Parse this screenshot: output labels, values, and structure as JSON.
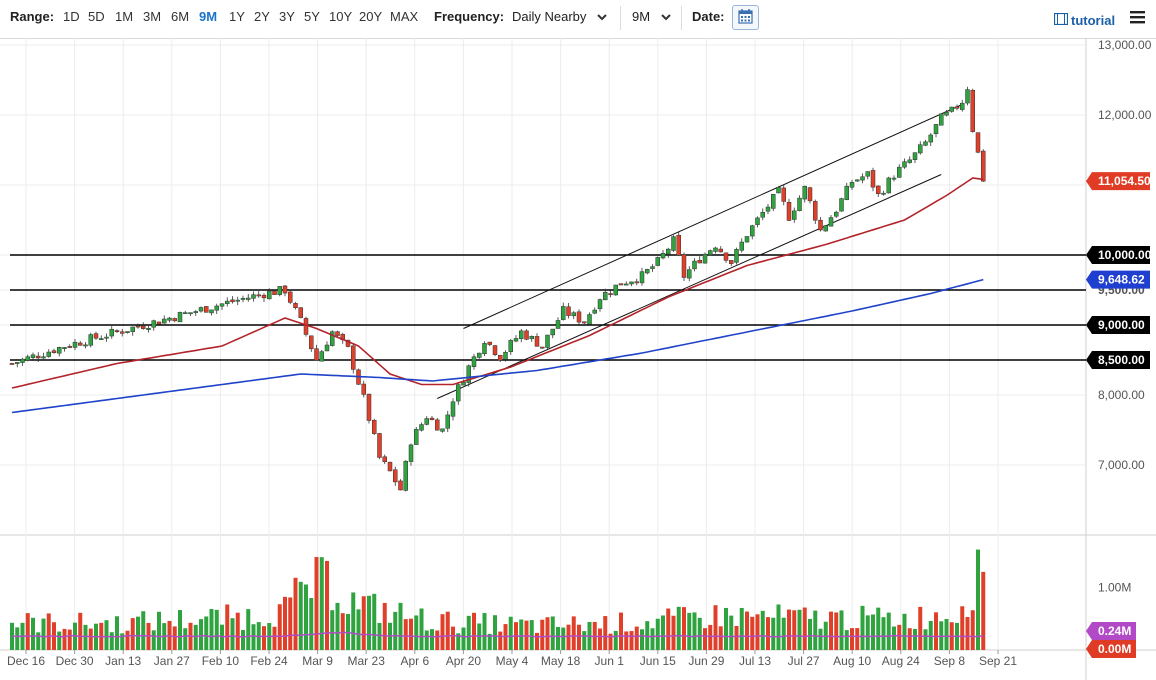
{
  "toolbar": {
    "range_label": "Range:",
    "ranges": [
      "1D",
      "5D",
      "1M",
      "3M",
      "6M",
      "9M",
      "1Y",
      "2Y",
      "3Y",
      "5Y",
      "10Y",
      "20Y",
      "MAX"
    ],
    "active_range": "9M",
    "frequency_label": "Frequency:",
    "frequency_value": "Daily Nearby",
    "period_value": "9M",
    "date_label": "Date:",
    "tutorial_label": "tutorial"
  },
  "colors": {
    "up": "#2ea33f",
    "down": "#e0402a",
    "ma50": "#b3242a",
    "ma200": "#1f43c9",
    "volume_avg": "#b24ac8",
    "price_badge": "#e03b24",
    "level_badge": "#000000",
    "ma200_badge": "#1f3fd0",
    "vol_badge": "#b24ac8",
    "vol_zero_badge": "#e03b24"
  },
  "chart_data": {
    "type": "candlestick",
    "x_ticks": [
      "Dec 16",
      "Dec 30",
      "Jan 13",
      "Jan 27",
      "Feb 10",
      "Feb 24",
      "Mar 9",
      "Mar 23",
      "Apr 6",
      "Apr 20",
      "May 4",
      "May 18",
      "Jun 1",
      "Jun 15",
      "Jun 29",
      "Jul 13",
      "Jul 27",
      "Aug 10",
      "Aug 24",
      "Sep 8",
      "Sep 21"
    ],
    "y_ticks": [
      "7,000.00",
      "8,000.00",
      "12,000.00",
      "13,000.00"
    ],
    "y_tick_values": [
      7000,
      8000,
      12000,
      13000
    ],
    "ylim": [
      6000,
      13000
    ],
    "grid": true,
    "horizontal_levels": [
      {
        "label": "10,000.00",
        "value": 10000
      },
      {
        "label": "9,500.00",
        "value": 9500
      },
      {
        "label": "9,000.00",
        "value": 9000
      },
      {
        "label": "8,500.00",
        "value": 8500
      }
    ],
    "last_price": {
      "label": "11,054.50",
      "value": 11054.5
    },
    "ma200_value": {
      "label": "9,648.62",
      "value": 9648.62
    },
    "close_path": [
      [
        0,
        8450
      ],
      [
        10,
        8700
      ],
      [
        20,
        8900
      ],
      [
        30,
        9100
      ],
      [
        40,
        9300
      ],
      [
        48,
        9450
      ],
      [
        52,
        9500
      ],
      [
        55,
        9050
      ],
      [
        58,
        8500
      ],
      [
        61,
        8900
      ],
      [
        64,
        8650
      ],
      [
        67,
        7950
      ],
      [
        70,
        7100
      ],
      [
        72,
        6900
      ],
      [
        74,
        6650
      ],
      [
        76,
        7350
      ],
      [
        79,
        7700
      ],
      [
        82,
        7500
      ],
      [
        84,
        7950
      ],
      [
        87,
        8400
      ],
      [
        90,
        8800
      ],
      [
        93,
        8550
      ],
      [
        97,
        8900
      ],
      [
        101,
        8700
      ],
      [
        105,
        9200
      ],
      [
        109,
        9050
      ],
      [
        112,
        9400
      ],
      [
        116,
        9600
      ],
      [
        120,
        9700
      ],
      [
        123,
        9900
      ],
      [
        126,
        10200
      ],
      [
        128,
        9700
      ],
      [
        131,
        9950
      ],
      [
        134,
        10150
      ],
      [
        137,
        9900
      ],
      [
        140,
        10300
      ],
      [
        143,
        10600
      ],
      [
        146,
        10900
      ],
      [
        148,
        10550
      ],
      [
        151,
        10950
      ],
      [
        154,
        10350
      ],
      [
        157,
        10650
      ],
      [
        160,
        11050
      ],
      [
        163,
        11150
      ],
      [
        165,
        10850
      ],
      [
        168,
        11150
      ],
      [
        171,
        11350
      ],
      [
        174,
        11600
      ],
      [
        177,
        11950
      ],
      [
        179,
        12050
      ],
      [
        181,
        12200
      ],
      [
        182,
        12400
      ],
      [
        183,
        11800
      ],
      [
        184,
        11450
      ],
      [
        185,
        11050
      ]
    ],
    "ma50_path": [
      [
        0,
        8100
      ],
      [
        20,
        8450
      ],
      [
        40,
        8700
      ],
      [
        52,
        9100
      ],
      [
        58,
        8950
      ],
      [
        66,
        8700
      ],
      [
        72,
        8300
      ],
      [
        78,
        8150
      ],
      [
        84,
        8150
      ],
      [
        95,
        8400
      ],
      [
        110,
        8850
      ],
      [
        125,
        9400
      ],
      [
        140,
        9850
      ],
      [
        155,
        10150
      ],
      [
        170,
        10500
      ],
      [
        178,
        10850
      ],
      [
        183,
        11100
      ],
      [
        185,
        11080
      ]
    ],
    "ma200_path": [
      [
        0,
        7750
      ],
      [
        30,
        8050
      ],
      [
        55,
        8300
      ],
      [
        70,
        8250
      ],
      [
        80,
        8200
      ],
      [
        100,
        8350
      ],
      [
        120,
        8600
      ],
      [
        140,
        8900
      ],
      [
        160,
        9200
      ],
      [
        175,
        9450
      ],
      [
        185,
        9648.62
      ]
    ],
    "channel_lines": [
      {
        "from": [
          86,
          8950
        ],
        "to": [
          181,
          12150
        ]
      },
      {
        "from": [
          81,
          7950
        ],
        "to": [
          177,
          11150
        ]
      }
    ],
    "volume": {
      "y_ticks": [
        "1.00M"
      ],
      "y_tick_values": [
        1000000
      ],
      "ylim": [
        0,
        1600000
      ],
      "last_avg": {
        "label": "0.24M",
        "value": 240000
      },
      "last_volume": {
        "label": "0.00M",
        "value": 0
      },
      "profile": [
        [
          0,
          480000
        ],
        [
          20,
          460000
        ],
        [
          30,
          520000
        ],
        [
          45,
          580000
        ],
        [
          52,
          700000
        ],
        [
          56,
          1100000
        ],
        [
          60,
          1200000
        ],
        [
          64,
          850000
        ],
        [
          70,
          700000
        ],
        [
          80,
          500000
        ],
        [
          100,
          420000
        ],
        [
          120,
          480000
        ],
        [
          135,
          600000
        ],
        [
          150,
          560000
        ],
        [
          170,
          540000
        ],
        [
          180,
          650000
        ],
        [
          184,
          1250000
        ]
      ]
    }
  }
}
